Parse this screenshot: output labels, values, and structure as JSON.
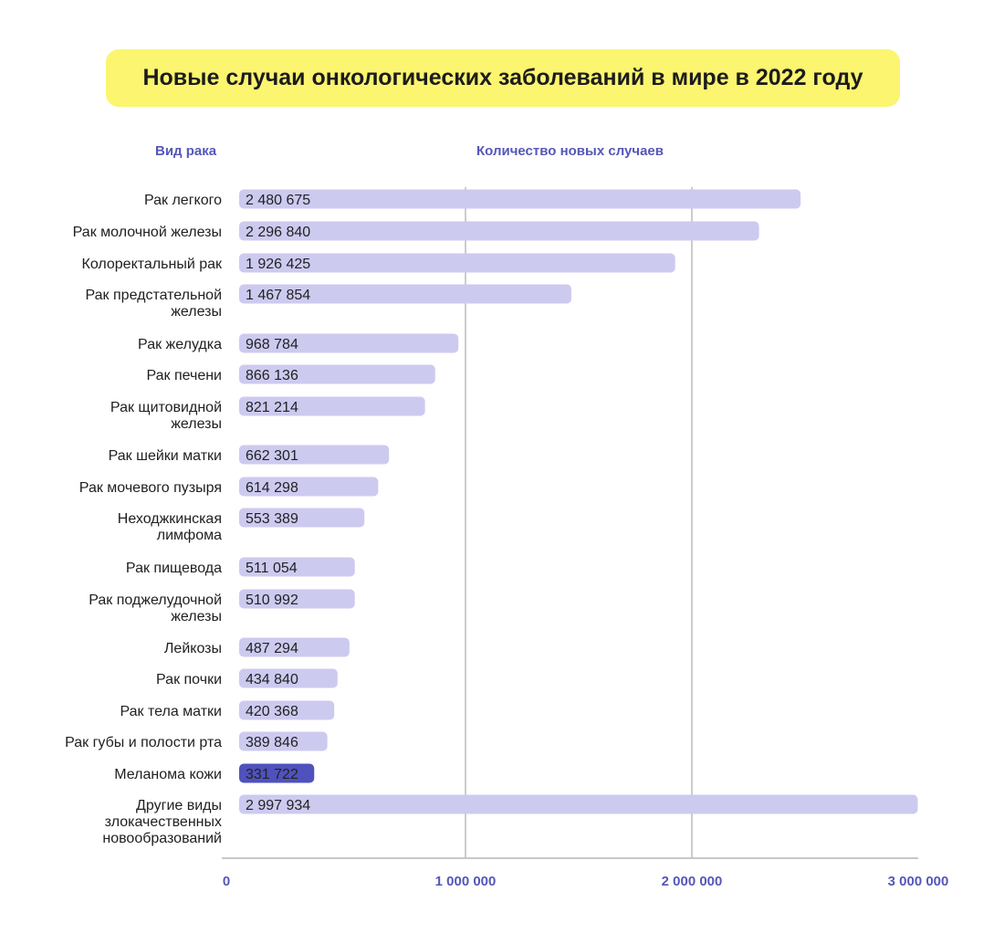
{
  "chart_data": {
    "type": "bar",
    "orientation": "horizontal",
    "title": "Новые случаи онкологических заболеваний в мире в 2022 году",
    "category_header": "Вид рака",
    "value_header": "Количество новых случаев",
    "categories": [
      [
        "Рак легкого"
      ],
      [
        "Рак молочной железы"
      ],
      [
        "Колоректальный рак"
      ],
      [
        "Рак предстательной",
        "железы"
      ],
      [
        "Рак желудка"
      ],
      [
        "Рак печени"
      ],
      [
        "Рак щитовидной",
        "железы"
      ],
      [
        "Рак шейки матки"
      ],
      [
        "Рак мочевого пузыря"
      ],
      [
        "Неходжкинская",
        "лимфома"
      ],
      [
        "Рак пищевода"
      ],
      [
        "Рак поджелудочной",
        "железы"
      ],
      [
        "Лейкозы"
      ],
      [
        "Рак почки"
      ],
      [
        "Рак тела матки"
      ],
      [
        "Рак губы и полости рта"
      ],
      [
        "Меланома кожи"
      ],
      [
        "Другие виды",
        "злокачественных",
        "новообразований"
      ]
    ],
    "values": [
      2480675,
      2296840,
      1926425,
      1467854,
      968784,
      866136,
      821214,
      662301,
      614298,
      553389,
      511054,
      510992,
      487294,
      434840,
      420368,
      389846,
      331722,
      2997934
    ],
    "value_labels": [
      "2 480 675",
      "2 296 840",
      "1 926 425",
      "1 467 854",
      "968 784",
      "866 136",
      "821 214",
      "662 301",
      "614 298",
      "553 389",
      "511 054",
      "510 992",
      "487 294",
      "434 840",
      "420 368",
      "389 846",
      "331 722",
      "2 997 934"
    ],
    "highlight_index": 16,
    "xlim": [
      0,
      3000000
    ],
    "x_ticks": [
      0,
      1000000,
      2000000,
      3000000
    ],
    "x_tick_labels": [
      "0",
      "1 000 000",
      "2 000 000",
      "3 000 000"
    ],
    "grid": "vertical",
    "colors": {
      "bar": "#cdcaf0",
      "highlight_bar": "#4f52bd",
      "highlight_text": "#ffffff",
      "axis_text": "#5557b8",
      "title_bg": "#fbf570"
    }
  }
}
